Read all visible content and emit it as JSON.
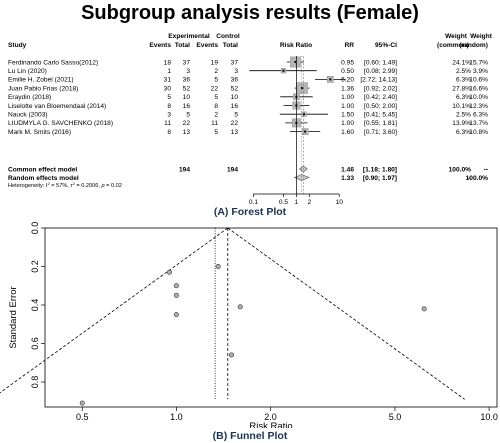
{
  "page": {
    "title": "Subgroup analysis results (Female)",
    "caption_a": "(A) Forest Plot",
    "caption_b": "(B) Funnel Plot"
  },
  "chart_data": [
    {
      "type": "forest",
      "headers": {
        "study": "Study",
        "exp_group": "Experimental",
        "ctrl_group": "Control",
        "events": "Events",
        "total": "Total",
        "plot": "Risk Ratio",
        "rr": "RR",
        "ci": "95%-CI",
        "weight": "Weight",
        "w_common": "(common)",
        "w_random": "(random)"
      },
      "studies": [
        {
          "name": "Ferdinando Carlo Sasso(2012)",
          "exp_events": "18",
          "exp_total": "37",
          "ctrl_events": "19",
          "ctrl_total": "37",
          "rr_text": "0.95",
          "ci_text": "[0.60; 1.49]",
          "w_common": "24.1%",
          "w_random": "15.7%",
          "rr": 0.95,
          "lo": 0.6,
          "hi": 1.49,
          "weight": 24.1
        },
        {
          "name": "Lu Lin (2020)",
          "exp_events": "1",
          "exp_total": "3",
          "ctrl_events": "2",
          "ctrl_total": "3",
          "rr_text": "0.50",
          "ci_text": "[0.08; 2.99]",
          "w_common": "2.5%",
          "w_random": "3.9%",
          "rr": 0.5,
          "lo": 0.08,
          "hi": 2.99,
          "weight": 2.5
        },
        {
          "name": "Emilie H. Zobel (2021)",
          "exp_events": "31",
          "exp_total": "36",
          "ctrl_events": "5",
          "ctrl_total": "36",
          "rr_text": "6.20",
          "ci_text": "[2.72; 14.13]",
          "w_common": "6.3%",
          "w_random": "10.6%",
          "rr": 6.2,
          "lo": 2.72,
          "hi": 14.13,
          "weight": 6.3
        },
        {
          "name": "Juan Pablo Frias (2018)",
          "exp_events": "30",
          "exp_total": "52",
          "ctrl_events": "22",
          "ctrl_total": "52",
          "rr_text": "1.36",
          "ci_text": "[0.92; 2.02]",
          "w_common": "27.8%",
          "w_random": "16.6%",
          "rr": 1.36,
          "lo": 0.92,
          "hi": 2.02,
          "weight": 27.8
        },
        {
          "name": "Eraydin (2018)",
          "exp_events": "5",
          "exp_total": "10",
          "ctrl_events": "5",
          "ctrl_total": "10",
          "rr_text": "1.00",
          "ci_text": "[0.42; 2.40]",
          "w_common": "6.3%",
          "w_random": "10.0%",
          "rr": 1.0,
          "lo": 0.42,
          "hi": 2.4,
          "weight": 6.3
        },
        {
          "name": "Liselotte van Bloemendaal (2014)",
          "exp_events": "8",
          "exp_total": "16",
          "ctrl_events": "8",
          "ctrl_total": "16",
          "rr_text": "1.00",
          "ci_text": "[0.50; 2.00]",
          "w_common": "10.1%",
          "w_random": "12.3%",
          "rr": 1.0,
          "lo": 0.5,
          "hi": 2.0,
          "weight": 10.1
        },
        {
          "name": "Nauck (2003)",
          "exp_events": "3",
          "exp_total": "5",
          "ctrl_events": "2",
          "ctrl_total": "5",
          "rr_text": "1.50",
          "ci_text": "[0.41; 5.45]",
          "w_common": "2.5%",
          "w_random": "6.3%",
          "rr": 1.5,
          "lo": 0.41,
          "hi": 5.45,
          "weight": 2.5
        },
        {
          "name": "LIUDMYLA G. SAVCHENKO (2018)",
          "exp_events": "11",
          "exp_total": "22",
          "ctrl_events": "11",
          "ctrl_total": "22",
          "rr_text": "1.00",
          "ci_text": "[0.55; 1.81]",
          "w_common": "13.9%",
          "w_random": "13.7%",
          "rr": 1.0,
          "lo": 0.55,
          "hi": 1.81,
          "weight": 13.9
        },
        {
          "name": "Mark M. Smits (2016)",
          "exp_events": "8",
          "exp_total": "13",
          "ctrl_events": "5",
          "ctrl_total": "13",
          "rr_text": "1.60",
          "ci_text": "[0.71; 3.60]",
          "w_common": "6.3%",
          "w_random": "10.8%",
          "rr": 1.6,
          "lo": 0.71,
          "hi": 3.6,
          "weight": 6.3
        }
      ],
      "pooled": [
        {
          "name": "Common effect model",
          "exp_total": "194",
          "ctrl_total": "194",
          "rr_text": "1.46",
          "ci_text": "[1.18; 1.80]",
          "w_common": "100.0%",
          "w_random": "--",
          "rr": 1.46,
          "lo": 1.18,
          "hi": 1.8
        },
        {
          "name": "Random effects model",
          "exp_total": "",
          "ctrl_total": "",
          "rr_text": "1.33",
          "ci_text": "[0.90; 1.97]",
          "w_common": "--",
          "w_random": "100.0%",
          "rr": 1.33,
          "lo": 0.9,
          "hi": 1.97
        }
      ],
      "heterogeneity": {
        "label": "Heterogeneity: ",
        "i2": "57%",
        "tau2": "0.2006",
        "p": "0.02"
      },
      "x_scale": "log",
      "x_ticks": [
        0.1,
        0.5,
        1,
        2,
        10
      ],
      "x_tick_labels": [
        "0.1",
        "0.5",
        "1",
        "2",
        "10"
      ]
    },
    {
      "type": "scatter",
      "subtype": "funnel",
      "xlabel": "Risk Ratio",
      "ylabel": "Standard Error",
      "x_scale": "log",
      "x_ticks": [
        0.5,
        1.0,
        2.0,
        5.0,
        10.0
      ],
      "x_tick_labels": [
        "0.5",
        "1.0",
        "2.0",
        "5.0",
        "10.0"
      ],
      "y_ticks": [
        0.0,
        0.2,
        0.4,
        0.6,
        0.8
      ],
      "y_tick_labels": [
        "0.0",
        "0.2",
        "0.4",
        "0.6",
        "0.8"
      ],
      "ylim": [
        0.93,
        0.0
      ],
      "points": [
        {
          "x": 0.95,
          "y": 0.23
        },
        {
          "x": 0.5,
          "y": 0.91
        },
        {
          "x": 6.2,
          "y": 0.42
        },
        {
          "x": 1.36,
          "y": 0.2
        },
        {
          "x": 1.0,
          "y": 0.45
        },
        {
          "x": 1.0,
          "y": 0.35
        },
        {
          "x": 1.5,
          "y": 0.66
        },
        {
          "x": 1.0,
          "y": 0.3
        },
        {
          "x": 1.6,
          "y": 0.41
        }
      ],
      "common_estimate": 1.46,
      "random_estimate": 1.33,
      "grid": false
    }
  ]
}
